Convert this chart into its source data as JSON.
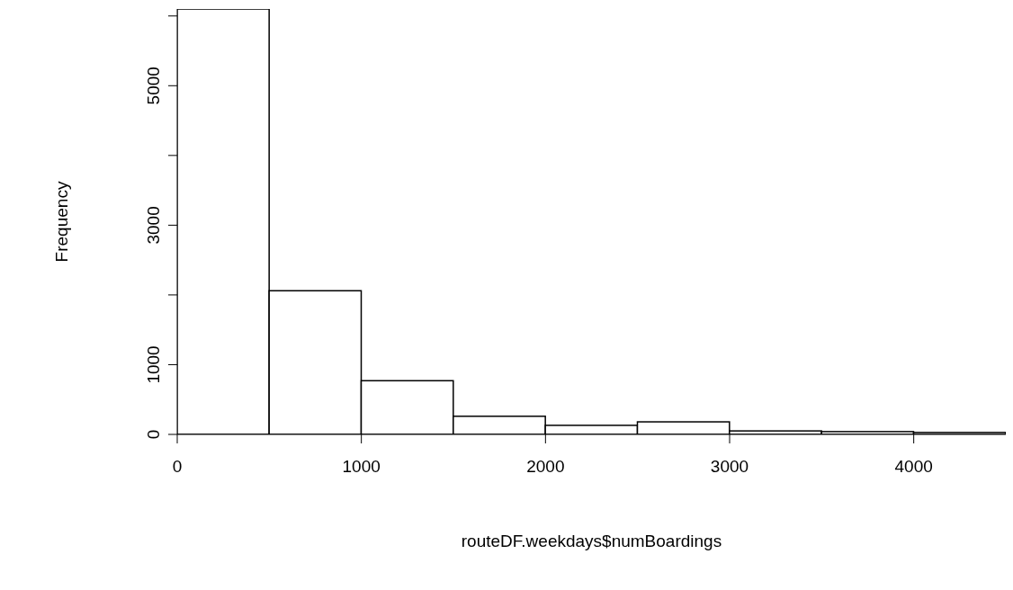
{
  "chart_data": {
    "type": "histogram",
    "xlabel": "routeDF.weekdays$numBoardings",
    "ylabel": "Frequency",
    "bins": [
      0,
      500,
      1000,
      1500,
      2000,
      2500,
      3000,
      3500,
      4000,
      4500
    ],
    "values": [
      6100,
      2060,
      770,
      260,
      130,
      180,
      50,
      40,
      28
    ],
    "color": "#ffffff",
    "xlim": [
      0,
      4500
    ],
    "xticks": [
      0,
      1000,
      2000,
      3000,
      4000
    ],
    "ylim": [
      0,
      6100
    ],
    "yticks": [
      0,
      1000,
      {
        "value": 2000,
        "label": null
      },
      3000,
      {
        "value": 4000,
        "label": null
      },
      5000,
      {
        "value": 6000,
        "label": null
      }
    ],
    "grid": false
  }
}
